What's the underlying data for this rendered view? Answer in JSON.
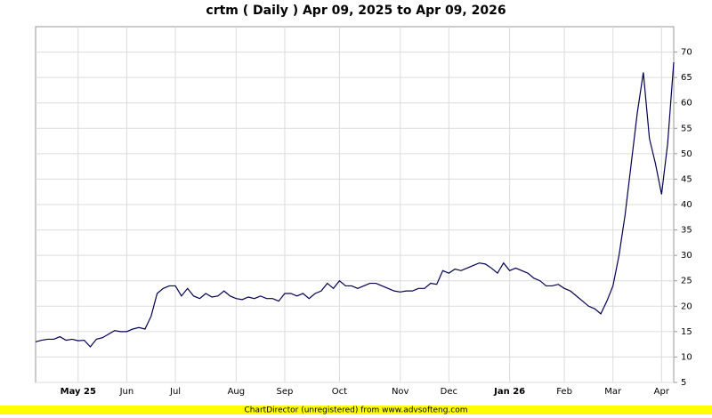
{
  "chart_data": {
    "type": "line",
    "title": "crtm ( Daily ) Apr 09, 2025 to Apr 09, 2026",
    "footer": "ChartDirector (unregistered) from www.advsofteng.com",
    "categories": [
      null,
      null,
      null,
      null,
      null,
      null,
      null,
      "May 25",
      null,
      null,
      null,
      null,
      null,
      null,
      null,
      "Jun",
      null,
      null,
      null,
      null,
      null,
      null,
      null,
      "Jul",
      null,
      null,
      null,
      null,
      null,
      null,
      null,
      null,
      null,
      "Aug",
      null,
      null,
      null,
      null,
      null,
      null,
      null,
      "Sep",
      null,
      null,
      null,
      null,
      null,
      null,
      null,
      null,
      "Oct",
      null,
      null,
      null,
      null,
      null,
      null,
      null,
      null,
      null,
      "Nov",
      null,
      null,
      null,
      null,
      null,
      null,
      null,
      "Dec",
      null,
      null,
      null,
      null,
      null,
      null,
      null,
      null,
      null,
      "Jan 26",
      null,
      null,
      null,
      null,
      null,
      null,
      null,
      null,
      "Feb",
      null,
      null,
      null,
      null,
      null,
      null,
      null,
      "Mar",
      null,
      null,
      null,
      null,
      null,
      null,
      null,
      "Apr",
      null,
      null
    ],
    "values": [
      13,
      13.3,
      13.5,
      13.5,
      14,
      13.3,
      13.5,
      13.2,
      13.3,
      12,
      13.5,
      13.8,
      14.5,
      15.2,
      15,
      15,
      15.5,
      15.8,
      15.5,
      18,
      22.5,
      23.5,
      24,
      24,
      22,
      23.5,
      22,
      21.5,
      22.5,
      21.8,
      22,
      23,
      22,
      21.5,
      21.3,
      21.8,
      21.5,
      22,
      21.5,
      21.5,
      21,
      22.5,
      22.5,
      22,
      22.5,
      21.5,
      22.5,
      23,
      24.5,
      23.5,
      25,
      24,
      24,
      23.5,
      24,
      24.5,
      24.5,
      24,
      23.5,
      23,
      22.8,
      23,
      23,
      23.5,
      23.5,
      24.5,
      24.3,
      27,
      26.5,
      27.3,
      27,
      27.5,
      28,
      28.5,
      28.3,
      27.5,
      26.5,
      28.5,
      27,
      27.5,
      27,
      26.5,
      25.5,
      25,
      24,
      24,
      24.3,
      23.5,
      23,
      22,
      21,
      20,
      19.5,
      18.5,
      21,
      24,
      30,
      38,
      48,
      58,
      66,
      53,
      48,
      42,
      52,
      68
    ],
    "color": "#000050",
    "ylim": [
      5,
      75
    ],
    "yticks": [
      5,
      10,
      15,
      20,
      25,
      30,
      35,
      40,
      45,
      50,
      55,
      60,
      65,
      70
    ],
    "grid": true
  }
}
